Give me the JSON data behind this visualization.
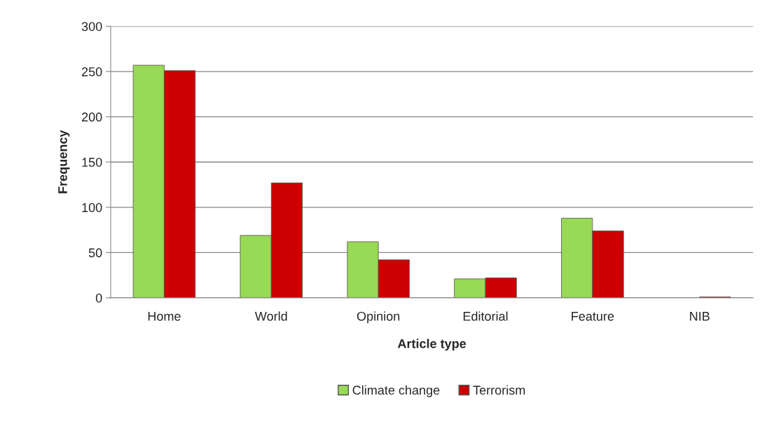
{
  "chart_data": {
    "type": "bar",
    "xlabel": "Article type",
    "ylabel": "Frequency",
    "categories": [
      "Home",
      "World",
      "Opinion",
      "Editorial",
      "Feature",
      "NIB"
    ],
    "series": [
      {
        "name": "Climate change",
        "color": "#98d955",
        "values": [
          257,
          69,
          62,
          21,
          88,
          0
        ]
      },
      {
        "name": "Terrorism",
        "color": "#cc0000",
        "values": [
          251,
          127,
          42,
          22,
          74,
          1
        ]
      }
    ],
    "ylim": [
      0,
      300
    ],
    "yticks": [
      0,
      50,
      100,
      150,
      200,
      250,
      300
    ],
    "grid": "y",
    "legend": "bottom"
  }
}
